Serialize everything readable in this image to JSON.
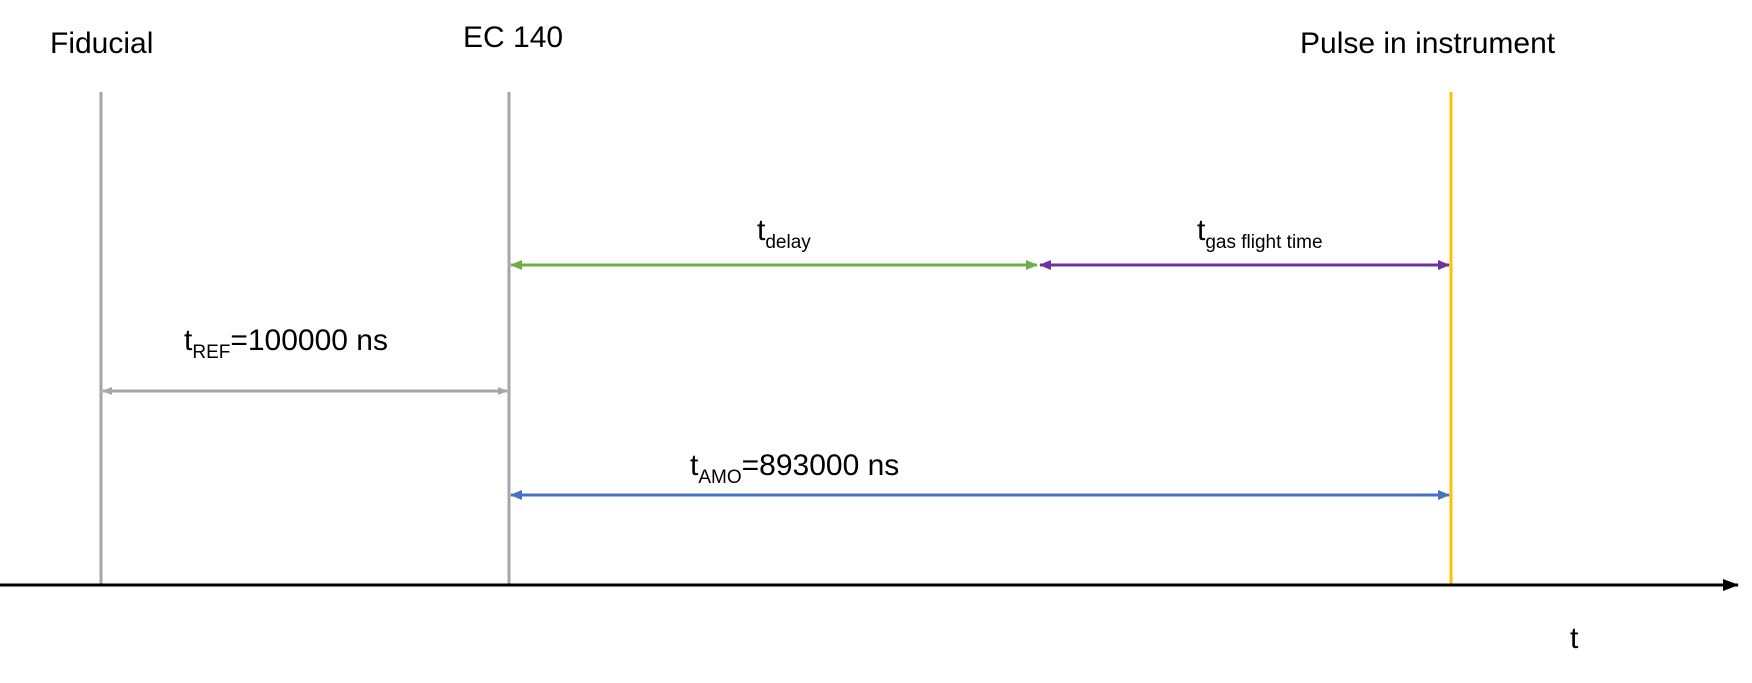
{
  "markers": {
    "fiducial": {
      "label": "Fiducial",
      "color": "#a6a6a6"
    },
    "ec140": {
      "label": "EC 140",
      "color": "#a6a6a6"
    },
    "pulse": {
      "label": "Pulse in instrument",
      "color": "#ffc000"
    }
  },
  "intervals": {
    "delay": {
      "base": "t",
      "subscript": "delay",
      "suffix": "",
      "color": "#70ad47"
    },
    "gas_flight": {
      "base": "t",
      "subscript": "gas flight time",
      "suffix": "",
      "color": "#7030a0"
    },
    "ref": {
      "base": "t",
      "subscript": "REF",
      "suffix": "=100000 ns",
      "color": "#a6a6a6"
    },
    "amo": {
      "base": "t",
      "subscript": "AMO",
      "suffix": "=893000 ns",
      "color": "#4472c4"
    }
  },
  "axis": {
    "label": "t",
    "color": "#000000"
  }
}
